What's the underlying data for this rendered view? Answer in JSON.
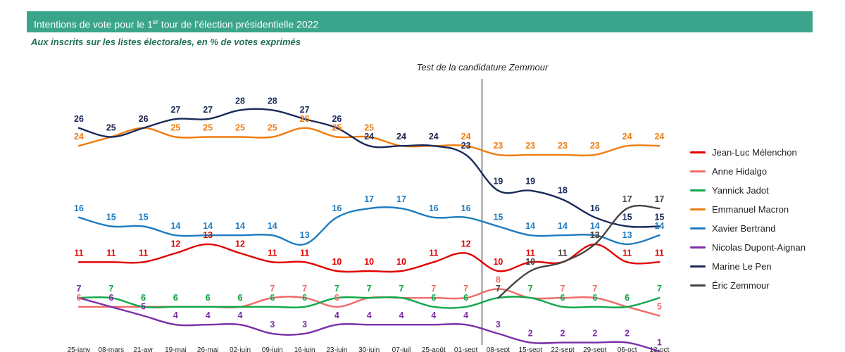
{
  "header": {
    "title_before": "Intentions de vote pour le 1",
    "title_sup": "er",
    "title_after": " tour de l’élection présidentielle 2022",
    "subtitle": "Aux inscrits sur les listes électorales, en % de votes exprimés",
    "colors": {
      "banner": "#3aa58b",
      "subtitle": "#1f6f58"
    }
  },
  "chart_data": {
    "type": "line",
    "annotation": "Test de la candidature Zemmour",
    "categories": [
      "25-janv",
      "08-mars",
      "21-avr",
      "19-mai",
      "26-mai",
      "02-juin",
      "09-juin",
      "16-juin",
      "23-juin",
      "30-juin",
      "07-juil",
      "25-août",
      "01-sept",
      "08-sept",
      "15-sept",
      "22-sept",
      "29-sept",
      "06-oct",
      "13-oct"
    ],
    "divider_after_category": "01-sept",
    "grid": false,
    "legend_position": "right",
    "series": [
      {
        "name": "Jean-Luc Mélenchon",
        "color": "#e00000",
        "values": [
          11,
          11,
          11,
          12,
          13,
          12,
          11,
          11,
          10,
          10,
          10,
          11,
          12,
          10,
          11,
          11,
          13,
          11,
          11
        ]
      },
      {
        "name": "Anne Hidalgo",
        "color": "#f06a6a",
        "values": [
          6,
          6,
          6,
          6,
          6,
          6,
          7,
          7,
          6,
          7,
          7,
          7,
          7,
          8,
          7,
          7,
          7,
          6,
          5
        ]
      },
      {
        "name": "Yannick Jadot",
        "color": "#10a84a",
        "values": [
          7,
          7,
          6,
          6,
          6,
          6,
          6,
          6,
          7,
          7,
          7,
          6,
          6,
          7,
          7,
          6,
          6,
          6,
          7
        ]
      },
      {
        "name": "Emmanuel Macron",
        "color": "#f07d10",
        "values": [
          24,
          25,
          26,
          25,
          25,
          25,
          25,
          26,
          25,
          25,
          24,
          24,
          24,
          23,
          23,
          23,
          23,
          24,
          24
        ]
      },
      {
        "name": "Xavier Bertrand",
        "color": "#1f7cc0",
        "values": [
          16,
          15,
          15,
          14,
          14,
          14,
          14,
          13,
          16,
          17,
          17,
          16,
          16,
          15,
          14,
          14,
          14,
          13,
          14
        ]
      },
      {
        "name": "Nicolas Dupont-Aignan",
        "color": "#7b2fa8",
        "values": [
          7,
          6,
          5,
          4,
          4,
          4,
          3,
          3,
          4,
          4,
          4,
          4,
          4,
          3,
          2,
          2,
          2,
          2,
          1
        ]
      },
      {
        "name": "Marine Le Pen",
        "color": "#1a2a5a",
        "values": [
          26,
          25,
          26,
          27,
          27,
          28,
          28,
          27,
          26,
          24,
          24,
          24,
          23,
          19,
          19,
          18,
          16,
          15,
          15
        ]
      },
      {
        "name": "Éric Zemmour",
        "color": "#444444",
        "values": [
          null,
          null,
          null,
          null,
          null,
          null,
          null,
          null,
          null,
          null,
          null,
          null,
          null,
          7,
          10,
          11,
          13,
          17,
          17
        ]
      }
    ]
  }
}
